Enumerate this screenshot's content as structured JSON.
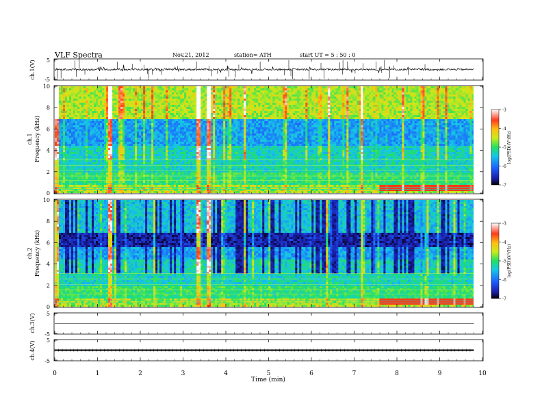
{
  "header": {
    "title": "VLF  Spectra",
    "date": "Nov.21, 2012",
    "station": "station= ATH",
    "start": "start  UT  =    5  : 50 : 0"
  },
  "chart_data": [
    {
      "type": "line",
      "panel": "ch1-waveform",
      "ylabel": "ch.1(V)",
      "ylim": [
        -5,
        5
      ],
      "yticks": [
        "5",
        "-5"
      ],
      "xlim": [
        0,
        10
      ],
      "trace_extent_min": [
        0,
        9.8
      ],
      "baseline_v": 0
    },
    {
      "type": "heatmap",
      "panel": "ch1-spectrogram",
      "ylabel": [
        "ch.1",
        "Frequency  (kHz)"
      ],
      "ylim": [
        0,
        10
      ],
      "yticks": [
        "0",
        "2",
        "4",
        "6",
        "8",
        "10"
      ],
      "xlim": [
        0,
        10
      ],
      "data_extent_min": [
        0,
        9.8
      ],
      "colorbar": {
        "label": "log(PSD)(V²/Hz)",
        "range": [
          -7,
          -3
        ],
        "ticks": [
          "-3",
          "-4",
          "-5",
          "-6",
          "-7"
        ]
      },
      "bright_events_min": [
        0.05,
        1.3,
        3.35,
        3.6,
        7.18
      ],
      "intense_low_band_khz": [
        0.3,
        0.6
      ]
    },
    {
      "type": "heatmap",
      "panel": "ch2-spectrogram",
      "ylabel": [
        "ch.2",
        "Frequency  (kHz)"
      ],
      "ylim": [
        0,
        10
      ],
      "yticks": [
        "0",
        "2",
        "4",
        "6",
        "8",
        "10"
      ],
      "xlim": [
        0,
        10
      ],
      "data_extent_min": [
        0,
        9.8
      ],
      "colorbar": {
        "label": "log(PSD)(V²/Hz)",
        "range": [
          -7,
          -3
        ],
        "ticks": [
          "-3",
          "-4",
          "-5",
          "-6",
          "-7"
        ]
      },
      "bright_events_min": [
        0.05,
        1.3,
        3.35,
        3.6,
        7.18
      ]
    },
    {
      "type": "line",
      "panel": "ch3-waveform",
      "ylabel": "ch.3(V)",
      "ylim": [
        -5,
        5
      ],
      "yticks": [
        "5",
        "-5"
      ],
      "xlim": [
        0,
        10
      ],
      "baseline_v": 0
    },
    {
      "type": "line",
      "panel": "ch4-waveform",
      "ylabel": "ch.4(V)",
      "ylim": [
        -5,
        5
      ],
      "yticks": [
        "5",
        "-5"
      ],
      "xlim": [
        0,
        10
      ],
      "baseline_v": 0
    }
  ],
  "xaxis": {
    "label": "Time  (min)",
    "ticks": [
      "0",
      "1",
      "2",
      "3",
      "4",
      "5",
      "6",
      "7",
      "8",
      "9",
      "10"
    ]
  }
}
